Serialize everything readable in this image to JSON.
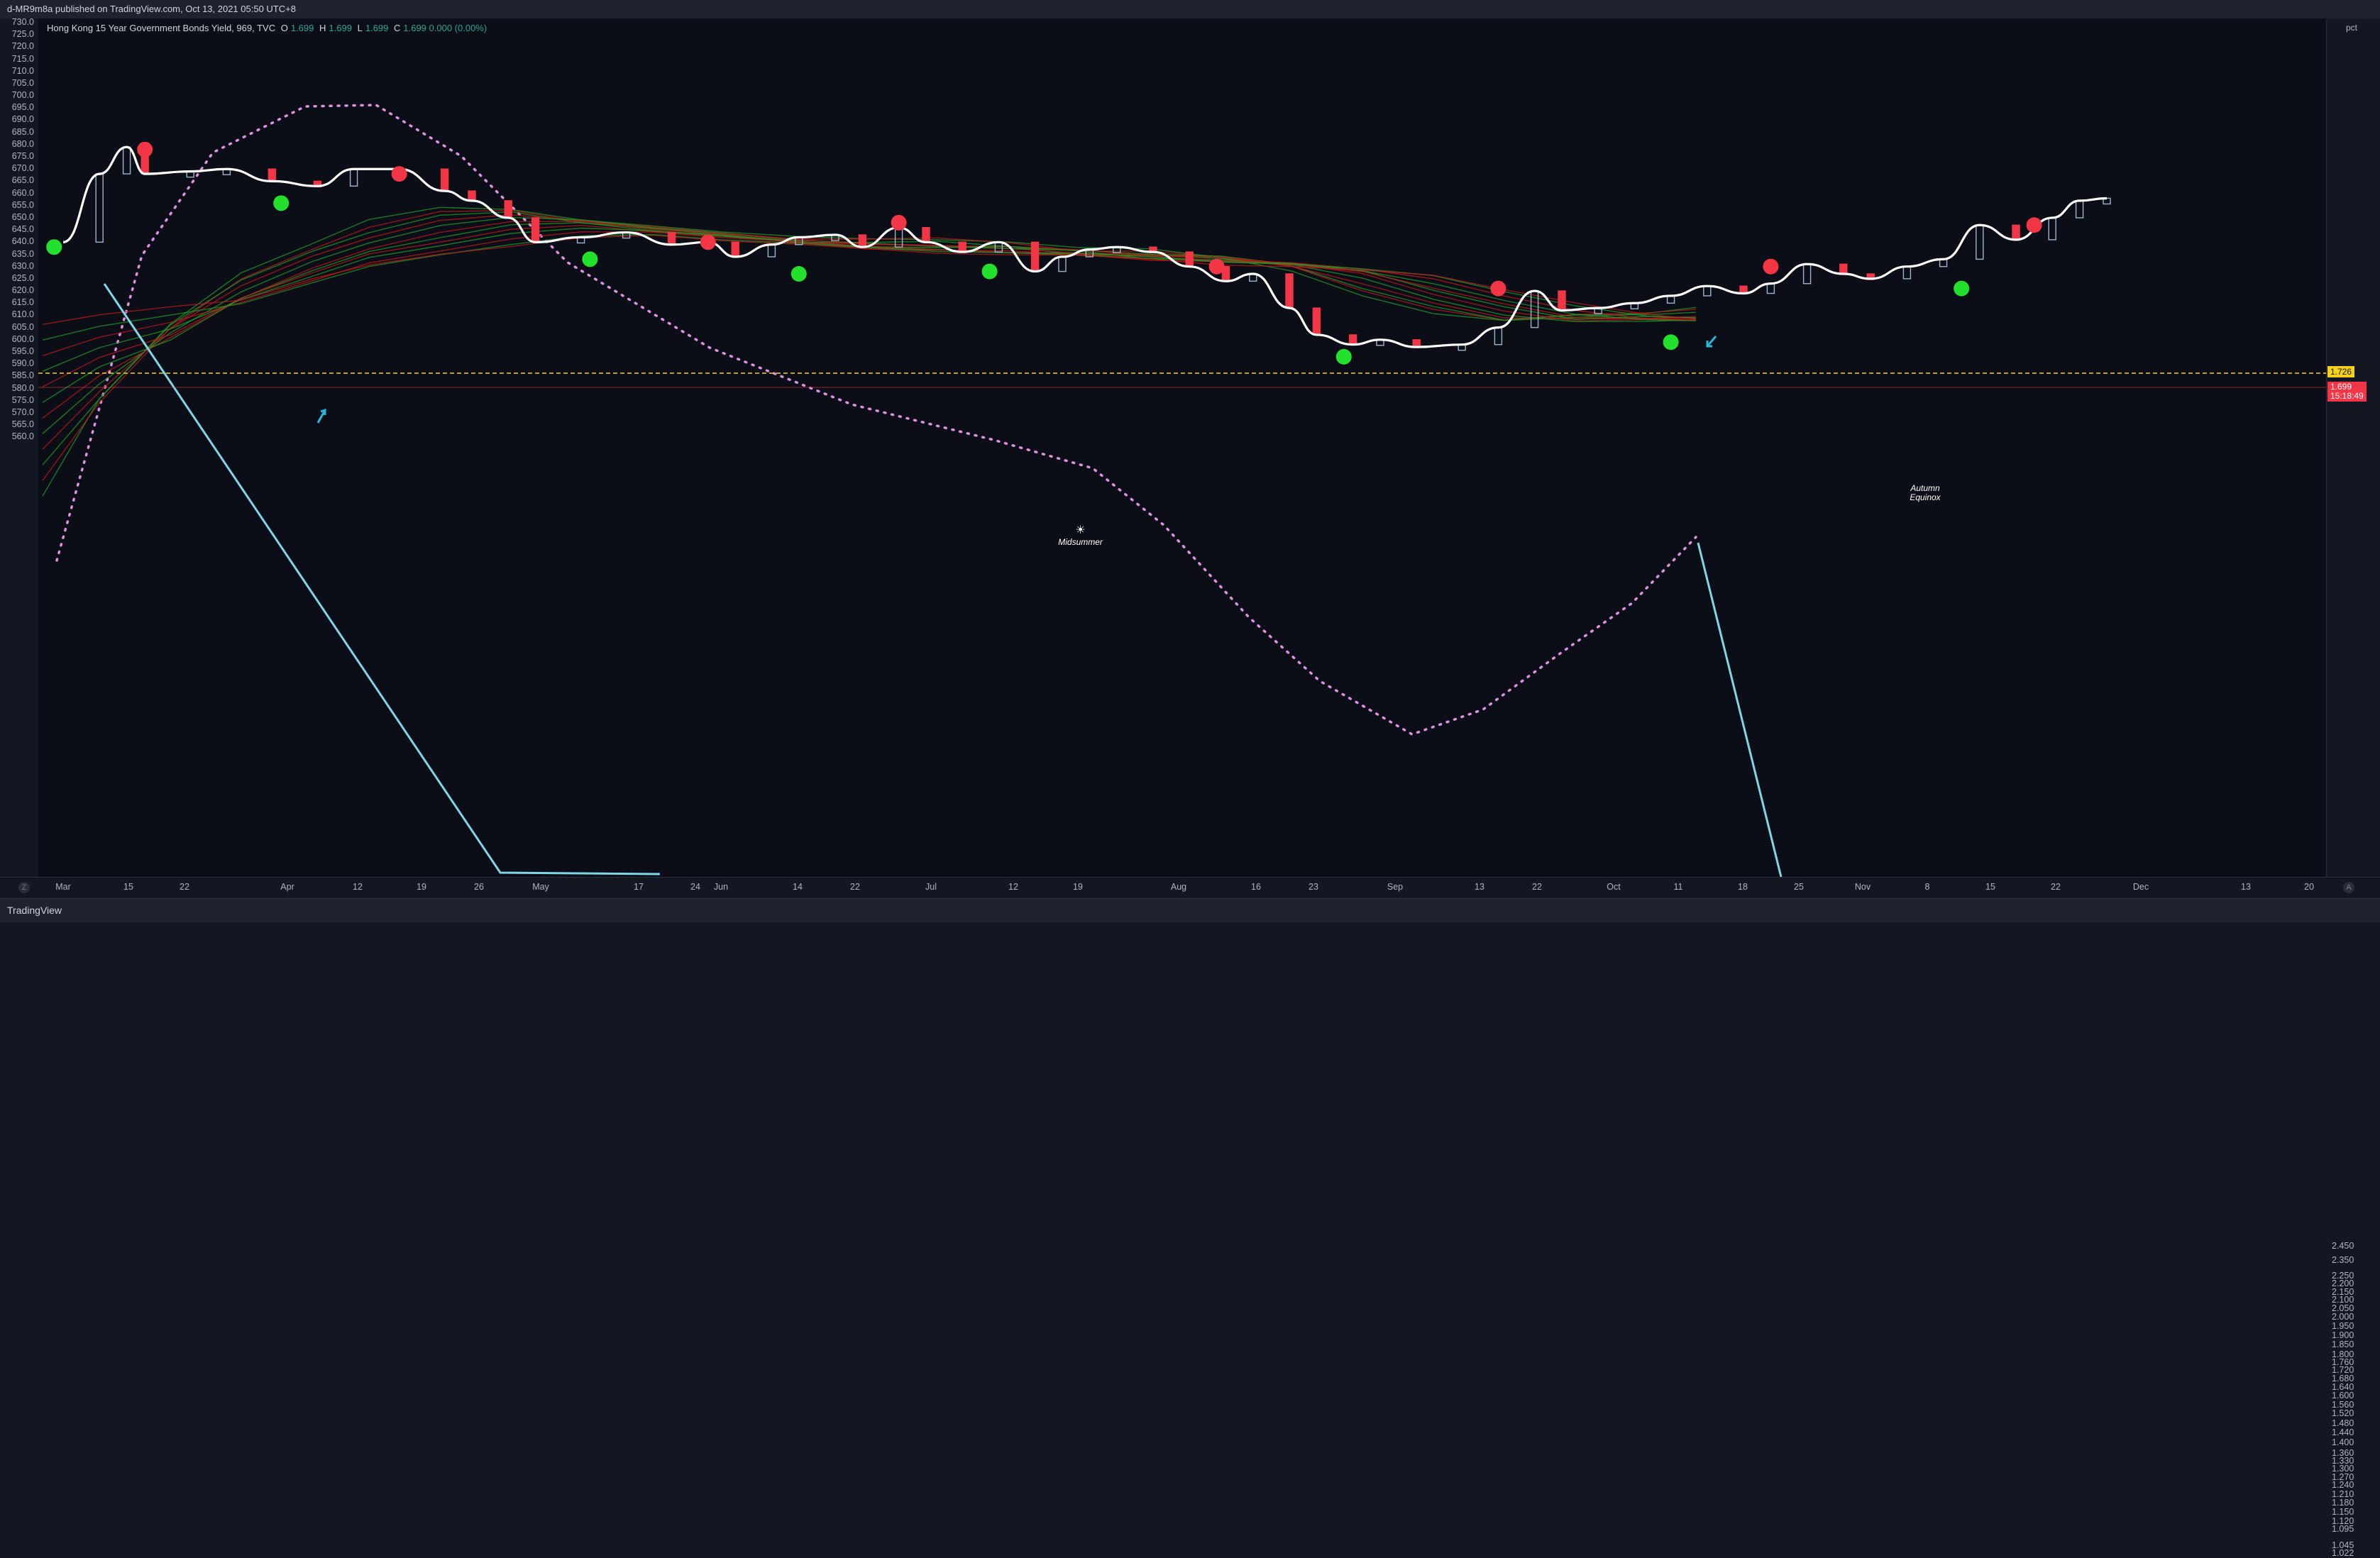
{
  "published_by": "d-MR9m8a published on TradingView.com, Oct 13, 2021 05:50 UTC+8",
  "legend": {
    "symbol": "Hong Kong 15 Year Government Bonds Yield, 969, TVC",
    "o_label": "O",
    "o_value": "1.699",
    "h_label": "H",
    "h_value": "1.699",
    "l_label": "L",
    "l_value": "1.699",
    "c_label": "C",
    "c_value": "1.699 0.000 (0.00%)"
  },
  "footer_logo": "TradingView",
  "right_unit": "pct",
  "price_tags": {
    "yellow": "1.726",
    "red_value": "1.699",
    "red_countdown": "15:18:49"
  },
  "corner_buttons": {
    "left": "Z",
    "right": "A"
  },
  "colors": {
    "background": "#0b0e17",
    "price_line": "#ffffff",
    "red_dot": "#f23645",
    "green_dot": "#22e02b",
    "ribbon_green": "#1f9d2a",
    "ribbon_red": "#c21a1a",
    "cyan_line": "#7fd6e6",
    "dotted_curve": "#e090e0",
    "yellow_line": "#f7d117",
    "candle_up": "#9fb3c8",
    "candle_down": "#f23645"
  },
  "chart_data": {
    "type": "line",
    "title": "Hong Kong 15 Year Government Bonds Yield, 969, TVC",
    "left_axis": {
      "ticks": [
        "730.0",
        "725.0",
        "720.0",
        "715.0",
        "710.0",
        "705.0",
        "700.0",
        "695.0",
        "690.0",
        "685.0",
        "680.0",
        "675.0",
        "670.0",
        "665.0",
        "660.0",
        "655.0",
        "650.0",
        "645.0",
        "640.0",
        "635.0",
        "630.0",
        "625.0",
        "620.0",
        "615.0",
        "610.0",
        "605.0",
        "600.0",
        "595.0",
        "590.0",
        "585.0",
        "580.0",
        "575.0",
        "570.0",
        "565.0",
        "560.0"
      ],
      "ylim": [
        557.5,
        731
      ]
    },
    "right_axis": {
      "unit": "pct",
      "scale": "log",
      "ticks": [
        "2.450",
        "2.350",
        "2.250",
        "2.200",
        "2.150",
        "2.100",
        "2.050",
        "2.000",
        "1.950",
        "1.900",
        "1.850",
        "1.800",
        "1.760",
        "1.720",
        "1.680",
        "1.640",
        "1.600",
        "1.560",
        "1.520",
        "1.480",
        "1.440",
        "1.400",
        "1.360",
        "1.330",
        "1.300",
        "1.270",
        "1.240",
        "1.210",
        "1.180",
        "1.150",
        "1.120",
        "1.095",
        "1.045",
        "1.022"
      ]
    },
    "x_ticks": [
      "Mar",
      "15",
      "22",
      "Apr",
      "12",
      "19",
      "26",
      "May",
      "17",
      "24",
      "Jun",
      "14",
      "22",
      "Jul",
      "12",
      "19",
      "Aug",
      "16",
      "23",
      "Sep",
      "13",
      "22",
      "Oct",
      "11",
      "18",
      "25",
      "Nov",
      "8",
      "15",
      "22",
      "Dec",
      "13",
      "20"
    ],
    "price_series": {
      "name": "",
      "x": [
        "2021-03-01",
        "2021-03-05",
        "2021-03-08",
        "2021-03-10",
        "2021-03-15",
        "2021-03-19",
        "2021-03-24",
        "2021-03-29",
        "2021-04-02",
        "2021-04-07",
        "2021-04-12",
        "2021-04-15",
        "2021-04-19",
        "2021-04-22",
        "2021-04-27",
        "2021-05-02",
        "2021-05-07",
        "2021-05-11",
        "2021-05-14",
        "2021-05-18",
        "2021-05-21",
        "2021-05-25",
        "2021-05-28",
        "2021-06-01",
        "2021-06-04",
        "2021-06-08",
        "2021-06-12",
        "2021-06-16",
        "2021-06-19",
        "2021-06-22",
        "2021-06-25",
        "2021-06-29",
        "2021-07-03",
        "2021-07-07",
        "2021-07-10",
        "2021-07-14",
        "2021-07-17",
        "2021-07-21",
        "2021-07-24",
        "2021-07-28",
        "2021-08-02",
        "2021-08-06",
        "2021-08-10",
        "2021-08-13",
        "2021-08-17",
        "2021-08-21",
        "2021-08-25",
        "2021-08-29",
        "2021-09-02",
        "2021-09-05",
        "2021-09-09",
        "2021-09-13",
        "2021-09-16",
        "2021-09-20",
        "2021-09-24",
        "2021-09-28",
        "2021-10-02",
        "2021-10-06",
        "2021-10-09",
        "2021-10-12"
      ],
      "y": [
        640,
        668,
        679,
        668,
        669,
        670,
        665,
        663,
        670,
        670,
        661,
        657,
        650,
        640,
        642,
        644,
        639,
        640,
        634,
        639,
        642,
        643,
        638,
        646,
        640,
        636,
        640,
        628,
        634,
        637,
        638,
        636,
        630,
        624,
        627,
        613,
        602,
        598,
        600,
        597,
        598,
        605,
        620,
        612,
        613,
        615,
        618,
        622,
        619,
        623,
        631,
        627,
        625,
        630,
        633,
        647,
        641,
        650,
        657,
        658
      ]
    },
    "signal_dots": {
      "red": [
        [
          "2021-03-10",
          678
        ],
        [
          "2021-04-07",
          668
        ],
        [
          "2021-05-11",
          640
        ],
        [
          "2021-06-01",
          648
        ],
        [
          "2021-07-06",
          630
        ],
        [
          "2021-08-06",
          621
        ],
        [
          "2021-09-05",
          630
        ],
        [
          "2021-10-04",
          647
        ]
      ],
      "green": [
        [
          "2021-02-28",
          638
        ],
        [
          "2021-03-25",
          656
        ],
        [
          "2021-04-28",
          633
        ],
        [
          "2021-05-21",
          627
        ],
        [
          "2021-06-11",
          628
        ],
        [
          "2021-07-20",
          593
        ],
        [
          "2021-08-25",
          599
        ],
        [
          "2021-09-26",
          621
        ]
      ]
    },
    "annotations": [
      {
        "text": "Midsummer",
        "x": "2021-06-21"
      },
      {
        "text": "Autumn Equinox",
        "x": "2021-09-22"
      }
    ],
    "reference_line": {
      "value": "1.726"
    },
    "grid": false
  }
}
